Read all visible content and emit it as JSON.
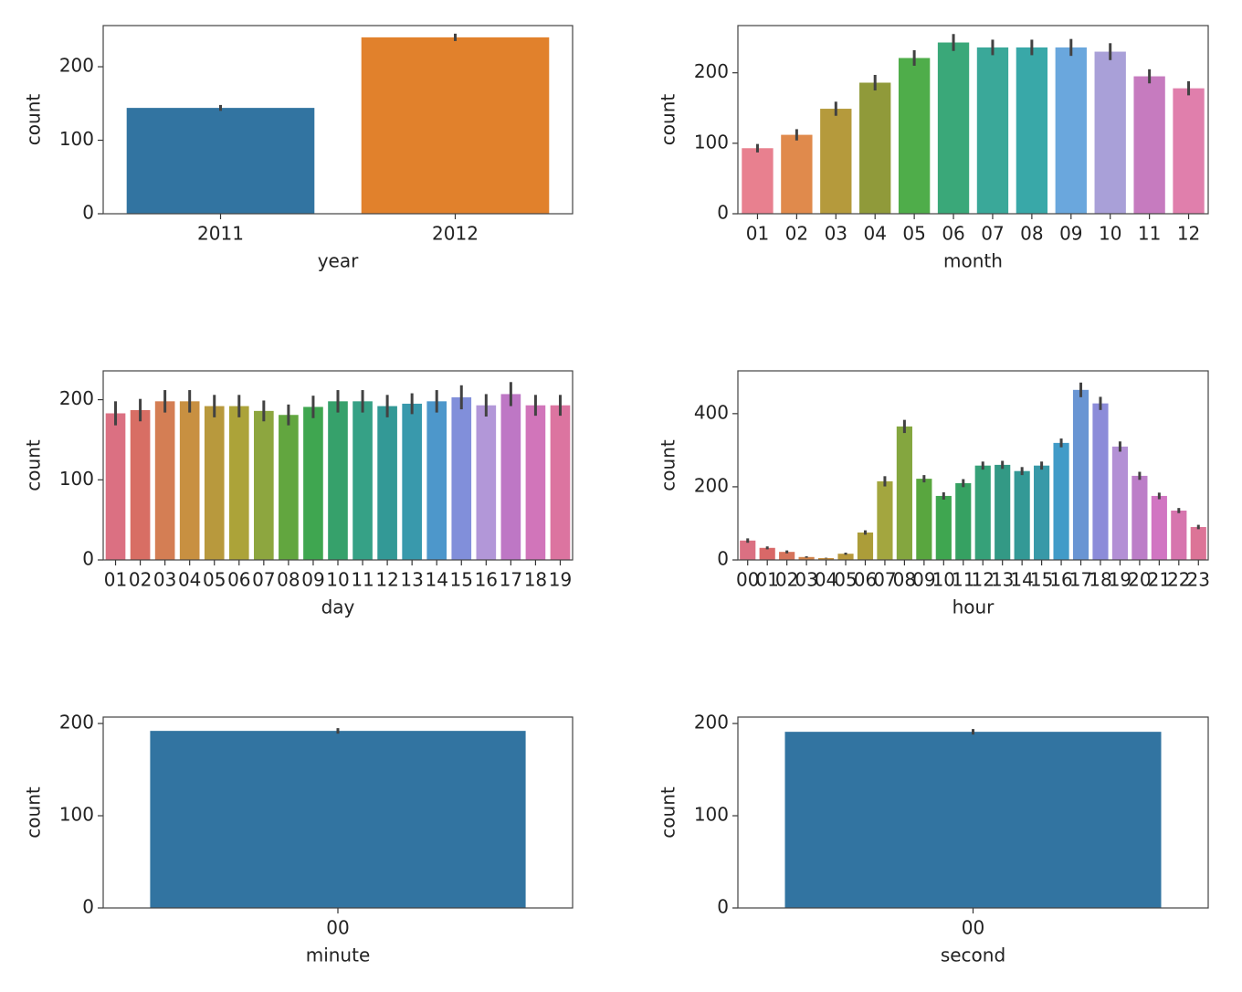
{
  "chart_data": [
    {
      "type": "bar",
      "xlabel": "year",
      "ylabel": "count",
      "categories": [
        "2011",
        "2012"
      ],
      "values": [
        144,
        240
      ],
      "errors": [
        4,
        5
      ],
      "colors": [
        "#3274a1",
        "#e1812c"
      ],
      "ylim": [
        0,
        256
      ],
      "yticks": [
        0,
        100,
        200
      ]
    },
    {
      "type": "bar",
      "xlabel": "month",
      "ylabel": "count",
      "categories": [
        "01",
        "02",
        "03",
        "04",
        "05",
        "06",
        "07",
        "08",
        "09",
        "10",
        "11",
        "12"
      ],
      "values": [
        93,
        112,
        149,
        186,
        221,
        243,
        236,
        236,
        236,
        230,
        195,
        178
      ],
      "errors": [
        6,
        8,
        10,
        11,
        11,
        12,
        11,
        11,
        12,
        12,
        10,
        10
      ],
      "colors": [
        "#e8808f",
        "#e08a4c",
        "#b59a3c",
        "#909a3a",
        "#4fad4a",
        "#3aa879",
        "#3aa899",
        "#39a8a8",
        "#6aa7dd",
        "#a9a0d8",
        "#c67bbf",
        "#e07fac"
      ],
      "ylim": [
        0,
        267
      ],
      "yticks": [
        0,
        100,
        200
      ]
    },
    {
      "type": "bar",
      "xlabel": "day",
      "ylabel": "count",
      "categories": [
        "01",
        "02",
        "03",
        "04",
        "05",
        "06",
        "07",
        "08",
        "09",
        "10",
        "11",
        "12",
        "13",
        "14",
        "15",
        "16",
        "17",
        "18",
        "19"
      ],
      "values": [
        183,
        187,
        198,
        198,
        192,
        192,
        186,
        181,
        191,
        198,
        198,
        192,
        195,
        198,
        203,
        193,
        207,
        193,
        193
      ],
      "errors": [
        15,
        14,
        14,
        14,
        14,
        14,
        13,
        13,
        14,
        14,
        14,
        14,
        13,
        14,
        15,
        14,
        15,
        13,
        13
      ],
      "colors": [
        "hsl(350,60%,65%)",
        "hsl(5,60%,62%)",
        "hsl(20,60%,58%)",
        "hsl(35,55%,52%)",
        "hsl(45,50%,48%)",
        "hsl(55,50%,45%)",
        "hsl(75,45%,45%)",
        "hsl(100,45%,45%)",
        "hsl(130,45%,45%)",
        "hsl(150,50%,42%)",
        "hsl(165,50%,42%)",
        "hsl(178,50%,40%)",
        "hsl(190,50%,45%)",
        "hsl(205,55%,55%)",
        "hsl(230,55%,68%)",
        "hsl(265,45%,72%)",
        "hsl(295,40%,62%)",
        "hsl(315,50%,64%)",
        "hsl(335,60%,66%)"
      ],
      "ylim": [
        0,
        236
      ],
      "yticks": [
        0,
        100,
        200
      ]
    },
    {
      "type": "bar",
      "xlabel": "hour",
      "ylabel": "count",
      "categories": [
        "00",
        "01",
        "02",
        "03",
        "04",
        "05",
        "06",
        "07",
        "08",
        "09",
        "10",
        "11",
        "12",
        "13",
        "14",
        "15",
        "16",
        "17",
        "18",
        "19",
        "20",
        "21",
        "22",
        "23"
      ],
      "values": [
        53,
        33,
        22,
        8,
        5,
        17,
        75,
        215,
        365,
        222,
        175,
        210,
        258,
        260,
        243,
        258,
        320,
        465,
        428,
        310,
        230,
        175,
        135,
        90
      ],
      "errors": [
        6,
        4,
        4,
        2,
        1,
        3,
        6,
        14,
        18,
        10,
        10,
        11,
        11,
        11,
        11,
        11,
        12,
        20,
        18,
        14,
        11,
        9,
        7,
        6
      ],
      "colors": [
        "hsl(350,60%,65%)",
        "hsl(0,60%,63%)",
        "hsl(12,60%,60%)",
        "hsl(25,60%,56%)",
        "hsl(35,55%,52%)",
        "hsl(45,50%,48%)",
        "hsl(52,50%,45%)",
        "hsl(62,45%,45%)",
        "hsl(80,45%,45%)",
        "hsl(105,45%,45%)",
        "hsl(130,45%,45%)",
        "hsl(145,50%,42%)",
        "hsl(158,50%,42%)",
        "hsl(168,50%,40%)",
        "hsl(178,50%,40%)",
        "hsl(188,50%,44%)",
        "hsl(200,55%,52%)",
        "hsl(215,55%,62%)",
        "hsl(240,50%,70%)",
        "hsl(270,45%,70%)",
        "hsl(290,40%,64%)",
        "hsl(310,50%,64%)",
        "hsl(325,55%,65%)",
        "hsl(340,60%,66%)"
      ],
      "ylim": [
        0,
        517
      ],
      "yticks": [
        0,
        200,
        400
      ]
    },
    {
      "type": "bar",
      "xlabel": "minute",
      "ylabel": "count",
      "categories": [
        "00"
      ],
      "values": [
        192
      ],
      "errors": [
        3
      ],
      "colors": [
        "#3274a1"
      ],
      "ylim": [
        0,
        207
      ],
      "yticks": [
        0,
        100,
        200
      ]
    },
    {
      "type": "bar",
      "xlabel": "second",
      "ylabel": "count",
      "categories": [
        "00"
      ],
      "values": [
        191
      ],
      "errors": [
        3
      ],
      "colors": [
        "#3274a1"
      ],
      "ylim": [
        0,
        207
      ],
      "yticks": [
        0,
        100,
        200
      ]
    }
  ]
}
